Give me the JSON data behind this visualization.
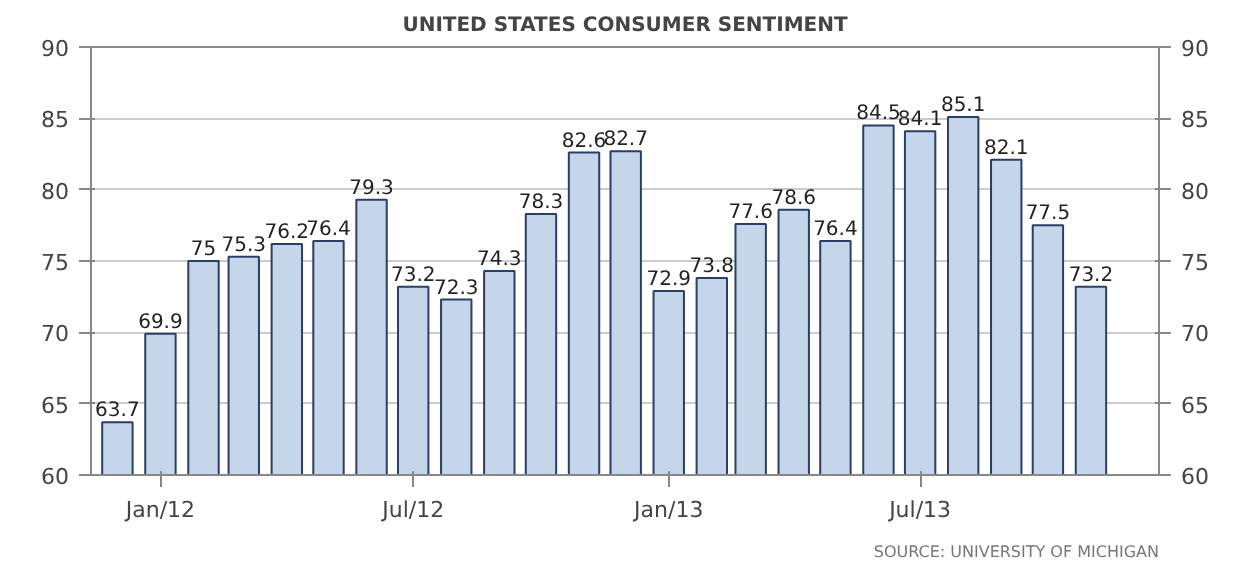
{
  "chart_data": {
    "type": "bar",
    "title": "UNITED STATES CONSUMER SENTIMENT",
    "x": [
      "2011-12",
      "2012-01",
      "2012-02",
      "2012-03",
      "2012-04",
      "2012-05",
      "2012-06",
      "2012-07",
      "2012-08",
      "2012-09",
      "2012-10",
      "2012-11",
      "2012-12",
      "2013-01",
      "2013-02",
      "2013-03",
      "2013-04",
      "2013-05",
      "2013-06",
      "2013-07",
      "2013-08",
      "2013-09",
      "2013-10",
      "2013-11"
    ],
    "values": [
      63.7,
      69.9,
      75,
      75.3,
      76.2,
      76.4,
      79.3,
      73.2,
      72.3,
      74.3,
      78.3,
      82.6,
      82.7,
      72.9,
      73.8,
      77.6,
      78.6,
      76.4,
      84.5,
      84.1,
      85.1,
      82.1,
      77.5,
      73.2
    ],
    "color": "#c5d5ea",
    "data_labels": true,
    "xlim": [
      "2011-11-12",
      "2013-12-20"
    ],
    "xticks": [
      {
        "value": "2012-01",
        "label": "Jan/12"
      },
      {
        "value": "2012-07",
        "label": "Jul/12"
      },
      {
        "value": "2013-01",
        "label": "Jan/13"
      },
      {
        "value": "2013-07",
        "label": "Jul/13"
      }
    ],
    "ylim": [
      60,
      90
    ],
    "yticks": [
      60,
      65,
      70,
      75,
      80,
      85,
      90
    ],
    "y2lim": [
      60,
      90
    ],
    "y2ticks": [
      60,
      65,
      70,
      75,
      80,
      85,
      90
    ],
    "grid": "y",
    "annotations": [
      "SOURCE: UNIVERSITY OF MICHIGAN"
    ]
  }
}
